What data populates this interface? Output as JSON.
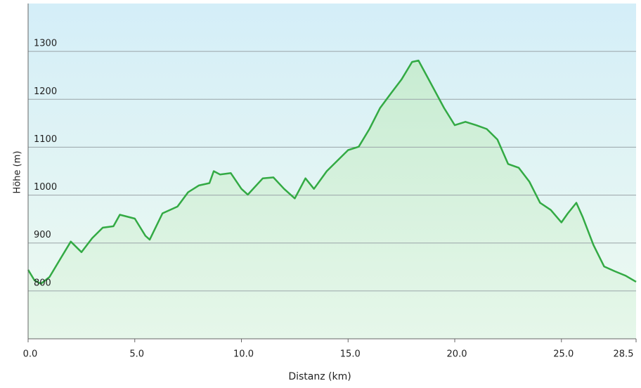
{
  "chart_data": {
    "type": "line",
    "x_label": "Distanz  (km)",
    "y_label": "Höhe (m)",
    "x": [
      0.0,
      0.3,
      0.6,
      1.0,
      1.5,
      2.0,
      2.5,
      3.0,
      3.5,
      4.0,
      4.3,
      5.0,
      5.5,
      5.7,
      6.3,
      7.0,
      7.5,
      8.0,
      8.5,
      8.7,
      9.0,
      9.5,
      10.0,
      10.3,
      11.0,
      11.5,
      12.0,
      12.5,
      13.0,
      13.4,
      14.0,
      14.5,
      15.0,
      15.5,
      16.0,
      16.5,
      17.0,
      17.5,
      18.0,
      18.3,
      18.7,
      19.5,
      20.0,
      20.5,
      21.0,
      21.5,
      22.0,
      22.5,
      23.0,
      23.5,
      24.0,
      24.5,
      25.0,
      25.3,
      25.7,
      26.0,
      26.5,
      27.0,
      27.5,
      28.0,
      28.5
    ],
    "series": [
      {
        "color": "#33aa44",
        "values": [
          844,
          822,
          815,
          829,
          866,
          903,
          881,
          910,
          932,
          935,
          959,
          951,
          915,
          907,
          962,
          976,
          1006,
          1020,
          1025,
          1050,
          1043,
          1046,
          1013,
          1001,
          1035,
          1037,
          1013,
          993,
          1035,
          1013,
          1050,
          1072,
          1094,
          1101,
          1138,
          1182,
          1212,
          1241,
          1278,
          1281,
          1248,
          1182,
          1146,
          1153,
          1146,
          1138,
          1116,
          1065,
          1057,
          1028,
          984,
          969,
          943,
          962,
          984,
          954,
          896,
          851,
          841,
          832,
          819
        ]
      }
    ],
    "xlim": [
      0,
      28.5
    ],
    "xticks": [
      {
        "value": 0,
        "label": "0.0"
      },
      {
        "value": 5,
        "label": "5.0"
      },
      {
        "value": 10,
        "label": "10.0"
      },
      {
        "value": 15,
        "label": "15.0"
      },
      {
        "value": 20,
        "label": "20.0"
      },
      {
        "value": 25,
        "label": "25.0"
      },
      28.5
    ],
    "ylim": [
      700,
      1400
    ],
    "yticks": [
      800,
      900,
      1000,
      1100,
      1200,
      1300
    ],
    "grid": true
  }
}
